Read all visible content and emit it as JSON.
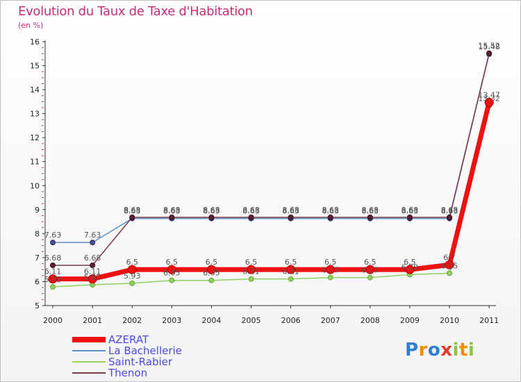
{
  "title": "Evolution du Taux de Taxe d'Habitation",
  "subtitle": "(en %)",
  "logo_text": "Proxiti",
  "chart_data": {
    "type": "line",
    "title": "Evolution du Taux de Taxe d'Habitation",
    "ylabel": "(en %)",
    "xlabel": "",
    "ylim": [
      5,
      16
    ],
    "yticks": [
      5,
      6,
      7,
      8,
      9,
      10,
      11,
      12,
      13,
      14,
      15,
      16
    ],
    "categories": [
      "2000",
      "2001",
      "2002",
      "2003",
      "2004",
      "2005",
      "2006",
      "2007",
      "2008",
      "2009",
      "2010",
      "2011"
    ],
    "series": [
      {
        "name": "Saint-Rabier",
        "color": "#90d060",
        "values": [
          5.78,
          5.87,
          5.93,
          6.05,
          6.05,
          6.11,
          6.11,
          6.17,
          6.17,
          6.29,
          6.35,
          13.32
        ],
        "labels": [
          "5.78",
          "5.87",
          "5.93",
          "6.05",
          "6.05",
          "6.11",
          "6.11",
          "6.17",
          "6.17",
          "6.29",
          "6.35",
          "13.32"
        ]
      },
      {
        "name": "La Bachellerie",
        "color": "#5b8fc8",
        "values": [
          7.63,
          7.63,
          8.63,
          8.63,
          8.63,
          8.63,
          8.63,
          8.63,
          8.63,
          8.63,
          8.63,
          15.48
        ],
        "labels": [
          "7.63",
          "7.63",
          "8.63",
          "8.63",
          "8.63",
          "8.63",
          "8.63",
          "8.63",
          "8.63",
          "8.63",
          "8.63",
          "15.48"
        ]
      },
      {
        "name": "Thenon",
        "color": "#7a3a46",
        "values": [
          6.68,
          6.68,
          8.68,
          8.68,
          8.68,
          8.68,
          8.68,
          8.68,
          8.68,
          8.68,
          8.68,
          15.52
        ],
        "labels": [
          "6.68",
          "6.68",
          "8.68",
          "8.68",
          "8.68",
          "8.68",
          "8.68",
          "8.68",
          "8.68",
          "8.68",
          "8.68",
          "15.52"
        ]
      },
      {
        "name": "AZERAT",
        "color": "#ee1111",
        "values": [
          6.11,
          6.11,
          6.5,
          6.5,
          6.5,
          6.5,
          6.5,
          6.5,
          6.5,
          6.5,
          6.7,
          13.47
        ],
        "labels": [
          "6.11",
          "6.11",
          "6.5",
          "6.5",
          "6.5",
          "6.5",
          "6.5",
          "6.5",
          "6.5",
          "6.5",
          "6.7",
          "13.47"
        ]
      }
    ],
    "legend": {
      "position": "bottom-left",
      "order": [
        "AZERAT",
        "La Bachellerie",
        "Saint-Rabier",
        "Thenon"
      ]
    },
    "grid": false
  }
}
